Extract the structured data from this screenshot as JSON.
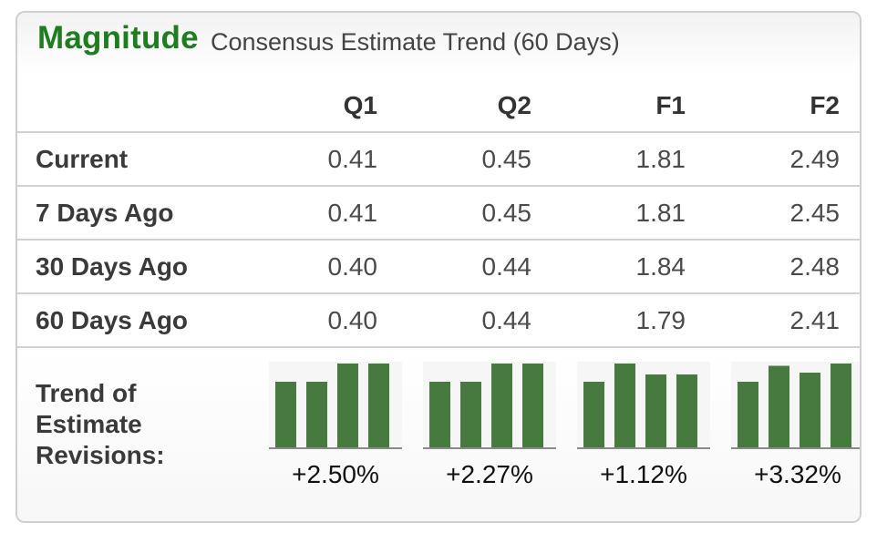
{
  "header": {
    "brand": "Magnitude",
    "subtitle": "Consensus Estimate Trend (60 Days)"
  },
  "table": {
    "columns": [
      "Q1",
      "Q2",
      "F1",
      "F2"
    ],
    "rows": [
      {
        "label": "Current",
        "values": [
          "0.41",
          "0.45",
          "1.81",
          "2.49"
        ]
      },
      {
        "label": "7 Days Ago",
        "values": [
          "0.41",
          "0.45",
          "1.81",
          "2.45"
        ]
      },
      {
        "label": "30 Days Ago",
        "values": [
          "0.40",
          "0.44",
          "1.84",
          "2.48"
        ]
      },
      {
        "label": "60 Days Ago",
        "values": [
          "0.40",
          "0.44",
          "1.79",
          "2.41"
        ]
      }
    ]
  },
  "trend": {
    "label_lines": [
      "Trend of",
      "Estimate",
      "Revisions:"
    ],
    "bar_color": "#467a3e",
    "cells": [
      {
        "column": "Q1",
        "percent": "+2.50%",
        "bars": [
          0.4,
          0.4,
          0.41,
          0.41
        ]
      },
      {
        "column": "Q2",
        "percent": "+2.27%",
        "bars": [
          0.44,
          0.44,
          0.45,
          0.45
        ]
      },
      {
        "column": "F1",
        "percent": "+1.12%",
        "bars": [
          1.79,
          1.84,
          1.81,
          1.81
        ]
      },
      {
        "column": "F2",
        "percent": "+3.32%",
        "bars": [
          2.41,
          2.48,
          2.45,
          2.49
        ]
      }
    ]
  }
}
